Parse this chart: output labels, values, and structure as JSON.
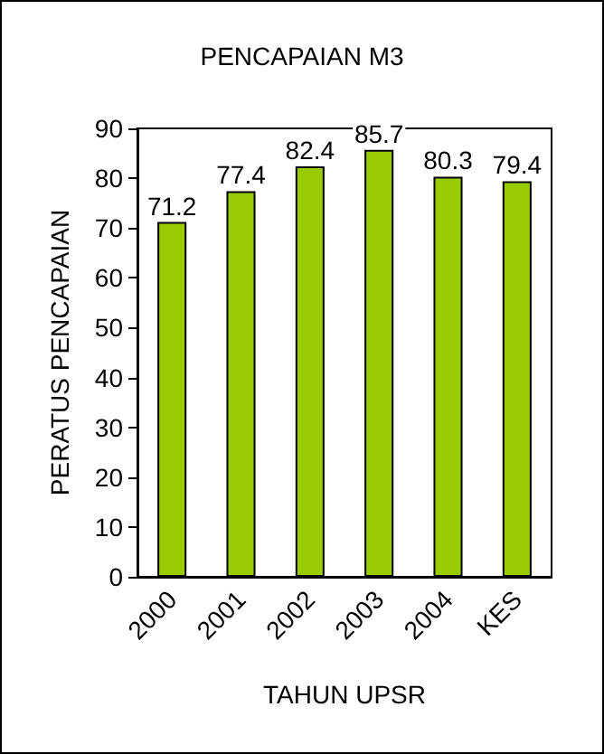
{
  "chart_data": {
    "type": "bar",
    "title": "PENCAPAIAN M3",
    "xlabel": "TAHUN UPSR",
    "ylabel": "PERATUS PENCAPAIAN",
    "categories": [
      "2000",
      "2001",
      "2002",
      "2003",
      "2004",
      "KES"
    ],
    "values": [
      71.2,
      77.4,
      82.4,
      85.7,
      80.3,
      79.4
    ],
    "color": "#99cc00",
    "ylim": [
      0,
      90
    ],
    "yticks": [
      0,
      10,
      20,
      30,
      40,
      50,
      60,
      70,
      80,
      90
    ],
    "grid": false,
    "data_labels": true
  }
}
